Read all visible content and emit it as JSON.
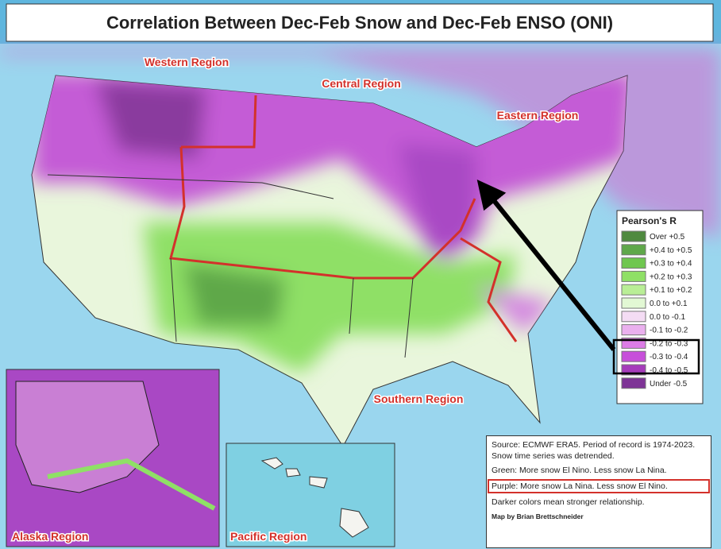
{
  "header": {
    "title": "Correlation Between Dec-Feb Snow and Dec-Feb ENSO (ONI)"
  },
  "regions": [
    "Western Region",
    "Central Region",
    "Eastern Region",
    "Southern Region",
    "Alaska Region",
    "Pacific Region"
  ],
  "legend": {
    "title": "Pearson's R",
    "items": [
      {
        "label": "Over +0.5",
        "color": "#4f8a3f"
      },
      {
        "label": "+0.4 to +0.5",
        "color": "#5fa84a"
      },
      {
        "label": "+0.3 to +0.4",
        "color": "#6fc74f"
      },
      {
        "label": "+0.2 to +0.3",
        "color": "#8fe066"
      },
      {
        "label": "+0.1 to +0.2",
        "color": "#b9ee96"
      },
      {
        "label": "0.0 to +0.1",
        "color": "#e2f8d4"
      },
      {
        "label": "0.0 to -0.1",
        "color": "#f4dcf4"
      },
      {
        "label": "-0.1 to -0.2",
        "color": "#eab0ee"
      },
      {
        "label": "-0.2 to -0.3",
        "color": "#dc7ce6"
      },
      {
        "label": "-0.3 to -0.4",
        "color": "#c74fda"
      },
      {
        "label": "-0.4 to -0.5",
        "color": "#a63cbb"
      },
      {
        "label": "Under -0.5",
        "color": "#7e3496"
      }
    ]
  },
  "notes": {
    "source": "Source: ECMWF ERA5. Period of record is 1974-2023. Snow time series was detrended.",
    "green": "Green: More snow El Nino. Less snow La Nina.",
    "purple": "Purple: More snow La Nina. Less snow El Nino.",
    "darker": "Darker colors mean stronger relationship.",
    "credit": "Map by Brian Brettschneider"
  }
}
